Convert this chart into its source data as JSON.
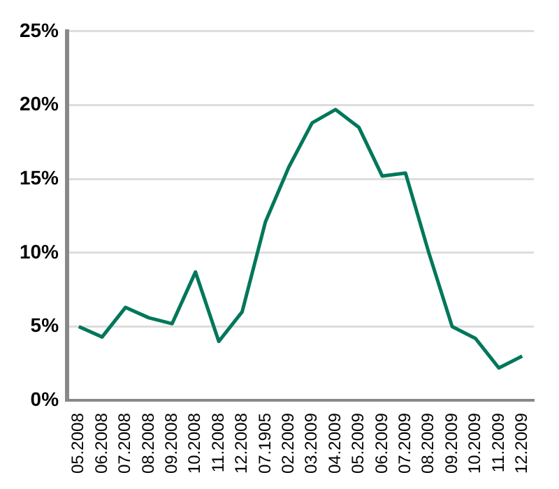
{
  "chart_data": {
    "type": "line",
    "categories": [
      "05.2008",
      "06.2008",
      "07.2008",
      "08.2008",
      "09.2008",
      "10.2008",
      "11.2008",
      "12.2008",
      "07.1905",
      "02.2009",
      "03.2009",
      "04.2009",
      "05.2009",
      "06.2009",
      "07.2009",
      "08.2009",
      "09.2009",
      "10.2009",
      "11.2009",
      "12.2009"
    ],
    "series": [
      {
        "color": "#00775a",
        "values": [
          5.0,
          4.3,
          6.3,
          5.6,
          5.2,
          8.7,
          4.0,
          6.0,
          12.1,
          15.8,
          18.8,
          19.7,
          18.5,
          15.2,
          15.4,
          10.0,
          5.0,
          4.2,
          2.2,
          3.0
        ]
      }
    ],
    "ylim": [
      0,
      25
    ],
    "yticks": [
      {
        "value": 0,
        "label": "0%"
      },
      {
        "value": 5,
        "label": "5%"
      },
      {
        "value": 10,
        "label": "10%"
      },
      {
        "value": 15,
        "label": "15%"
      },
      {
        "value": 20,
        "label": "20%"
      },
      {
        "value": 25,
        "label": "25%"
      }
    ],
    "grid": "y",
    "legend": false,
    "marker": "none",
    "line_style": "solid"
  }
}
